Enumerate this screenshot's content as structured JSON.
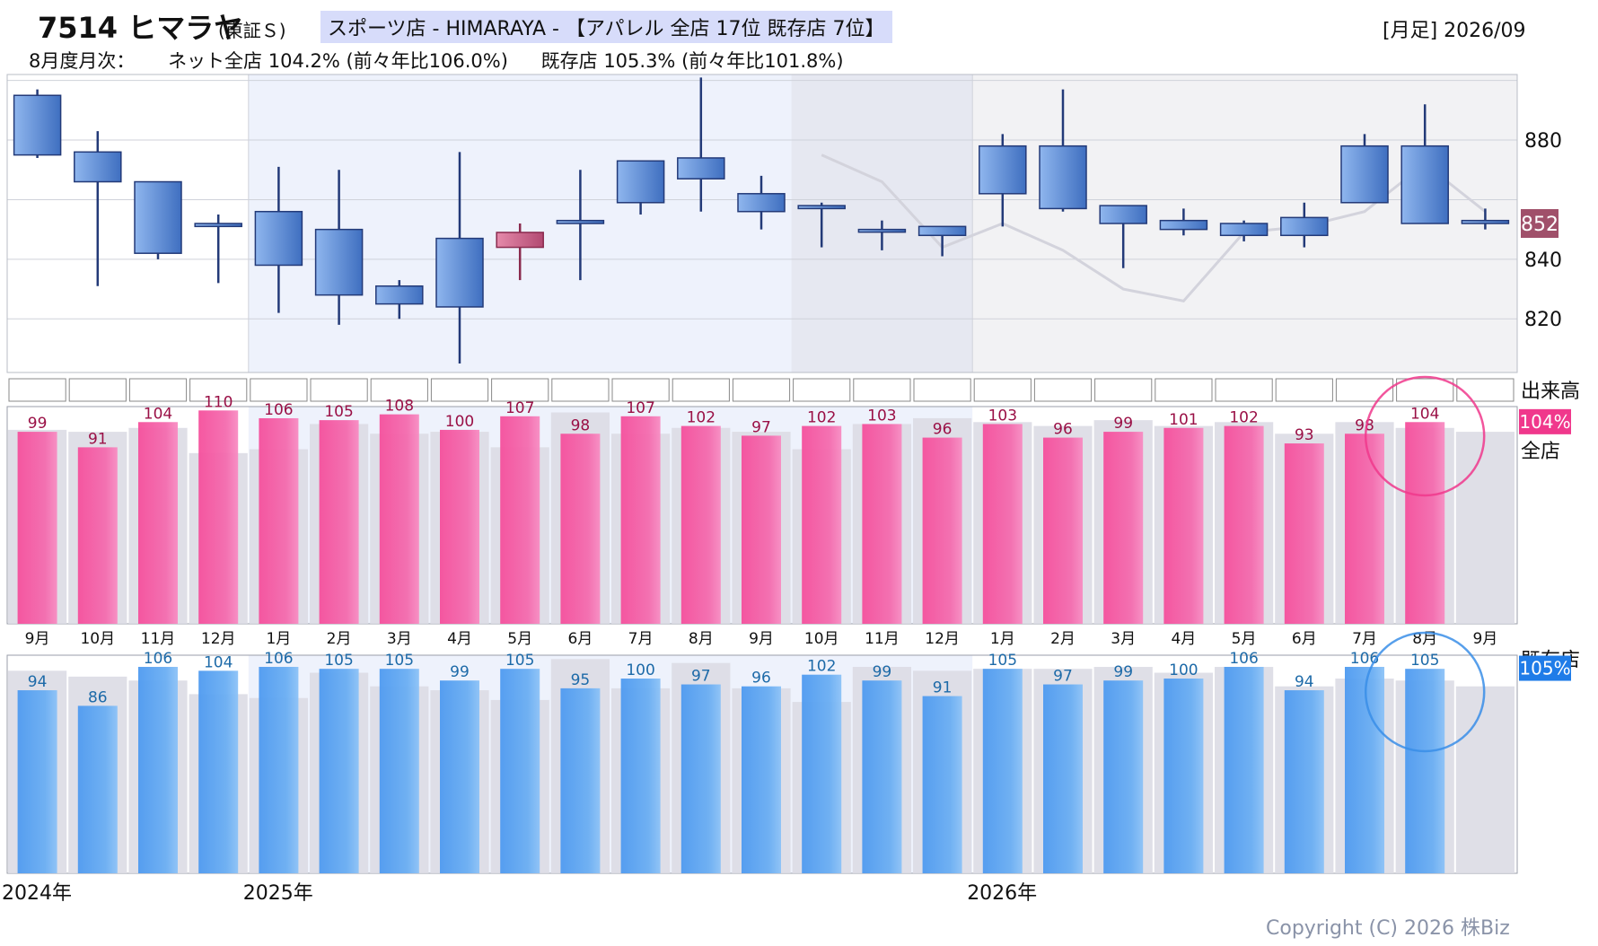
{
  "header": {
    "code_name": "7514 ヒマラヤ",
    "market": "(東証Ｓ)",
    "sector": "スポーツ店 - HIMARAYA - 【アパレル 全店 17位 既存店 7位】",
    "period": "[月足] 2026/09",
    "sub_prefix": "8月度月次：",
    "sub_all": "ネット全店 104.2% (前々年比106.0%)",
    "sub_existing": "既存店 105.3% (前々年比101.8%)"
  },
  "labels": {
    "volume": "出来高",
    "all_store": "全店",
    "existing_store": "既存店",
    "current_price": "852",
    "current_all_pct": "104%",
    "current_existing_pct": "105%"
  },
  "colors": {
    "up_candle": "#c8587f",
    "down_candle": "#5b8fd9",
    "wick": "#233a78",
    "all_bar": "#f25ea5",
    "existing_bar": "#5fa5f0",
    "prev_bar": "#dcdce4",
    "ma_line": "#d3d3dc",
    "price_tag": "#a0506a",
    "all_tag": "#f0388c",
    "existing_tag": "#1f7ce8"
  },
  "chart_data": [
    {
      "type": "candlestick",
      "title": "",
      "yticks": [
        820,
        840,
        880
      ],
      "ylim": [
        802,
        902
      ],
      "months": [
        "9月",
        "10月",
        "11月",
        "12月",
        "1月",
        "2月",
        "3月",
        "4月",
        "5月",
        "6月",
        "7月",
        "8月",
        "9月",
        "10月",
        "11月",
        "12月",
        "1月",
        "2月",
        "3月",
        "4月",
        "5月",
        "6月",
        "7月",
        "8月",
        "9月"
      ],
      "years": [
        {
          "label": "2024年",
          "index": 0
        },
        {
          "label": "2025年",
          "index": 4
        },
        {
          "label": "2026年",
          "index": 16
        }
      ],
      "open": [
        895,
        876,
        866,
        852,
        856,
        850,
        831,
        847,
        844,
        853,
        873,
        874,
        862,
        858,
        850,
        851,
        878,
        878,
        858,
        853,
        852,
        854,
        878,
        878,
        853
      ],
      "close": [
        875,
        866,
        842,
        851,
        838,
        828,
        825,
        824,
        849,
        852,
        859,
        867,
        856,
        857,
        850,
        848,
        862,
        857,
        852,
        850,
        848,
        848,
        859,
        852,
        852
      ],
      "high": [
        897,
        883,
        866,
        855,
        871,
        870,
        833,
        876,
        852,
        870,
        873,
        901,
        868,
        859,
        853,
        851,
        882,
        897,
        858,
        857,
        853,
        859,
        882,
        892,
        857
      ],
      "low": [
        874,
        831,
        840,
        832,
        822,
        818,
        820,
        805,
        833,
        833,
        855,
        856,
        850,
        844,
        843,
        841,
        851,
        856,
        837,
        848,
        846,
        844,
        859,
        852,
        850
      ],
      "ma": [
        null,
        null,
        null,
        null,
        null,
        null,
        null,
        null,
        null,
        null,
        null,
        null,
        null,
        875,
        866,
        844,
        852,
        843,
        830,
        826,
        849,
        851,
        856,
        872,
        856
      ],
      "current_price": 852
    },
    {
      "type": "bar",
      "title": "全店",
      "categories": [
        "9月",
        "10月",
        "11月",
        "12月",
        "1月",
        "2月",
        "3月",
        "4月",
        "5月",
        "6月",
        "7月",
        "8月",
        "9月",
        "10月",
        "11月",
        "12月",
        "1月",
        "2月",
        "3月",
        "4月",
        "5月",
        "6月",
        "7月",
        "8月",
        "9月"
      ],
      "series": [
        {
          "name": "全店",
          "values": [
            99,
            91,
            104,
            110,
            106,
            105,
            108,
            100,
            107,
            98,
            107,
            102,
            97,
            102,
            103,
            96,
            103,
            96,
            99,
            101,
            102,
            93,
            98,
            104,
            null
          ]
        },
        {
          "values": [
            100,
            99,
            101,
            88,
            90,
            103,
            98,
            99,
            91,
            109,
            98,
            101,
            99,
            90,
            103,
            106,
            104,
            102,
            105,
            102,
            104,
            98,
            104,
            101,
            99
          ]
        }
      ],
      "ylim": [
        0,
        112
      ]
    },
    {
      "type": "bar",
      "title": "既存店",
      "categories": [
        "9月",
        "10月",
        "11月",
        "12月",
        "1月",
        "2月",
        "3月",
        "4月",
        "5月",
        "6月",
        "7月",
        "8月",
        "9月",
        "10月",
        "11月",
        "12月",
        "1月",
        "2月",
        "3月",
        "4月",
        "5月",
        "6月",
        "7月",
        "8月",
        "9月"
      ],
      "series": [
        {
          "name": "既存店",
          "values": [
            94,
            86,
            106,
            104,
            106,
            105,
            105,
            99,
            105,
            95,
            100,
            97,
            96,
            102,
            99,
            91,
            105,
            97,
            99,
            100,
            106,
            94,
            106,
            105,
            null
          ]
        },
        {
          "values": [
            104,
            101,
            99,
            92,
            90,
            103,
            96,
            94,
            89,
            110,
            95,
            108,
            95,
            88,
            106,
            104,
            105,
            105,
            106,
            103,
            106,
            96,
            100,
            99,
            96
          ]
        }
      ],
      "ylim": [
        0,
        112
      ]
    }
  ],
  "footer": {
    "copyright": "Copyright (C) 2026 株Biz"
  }
}
